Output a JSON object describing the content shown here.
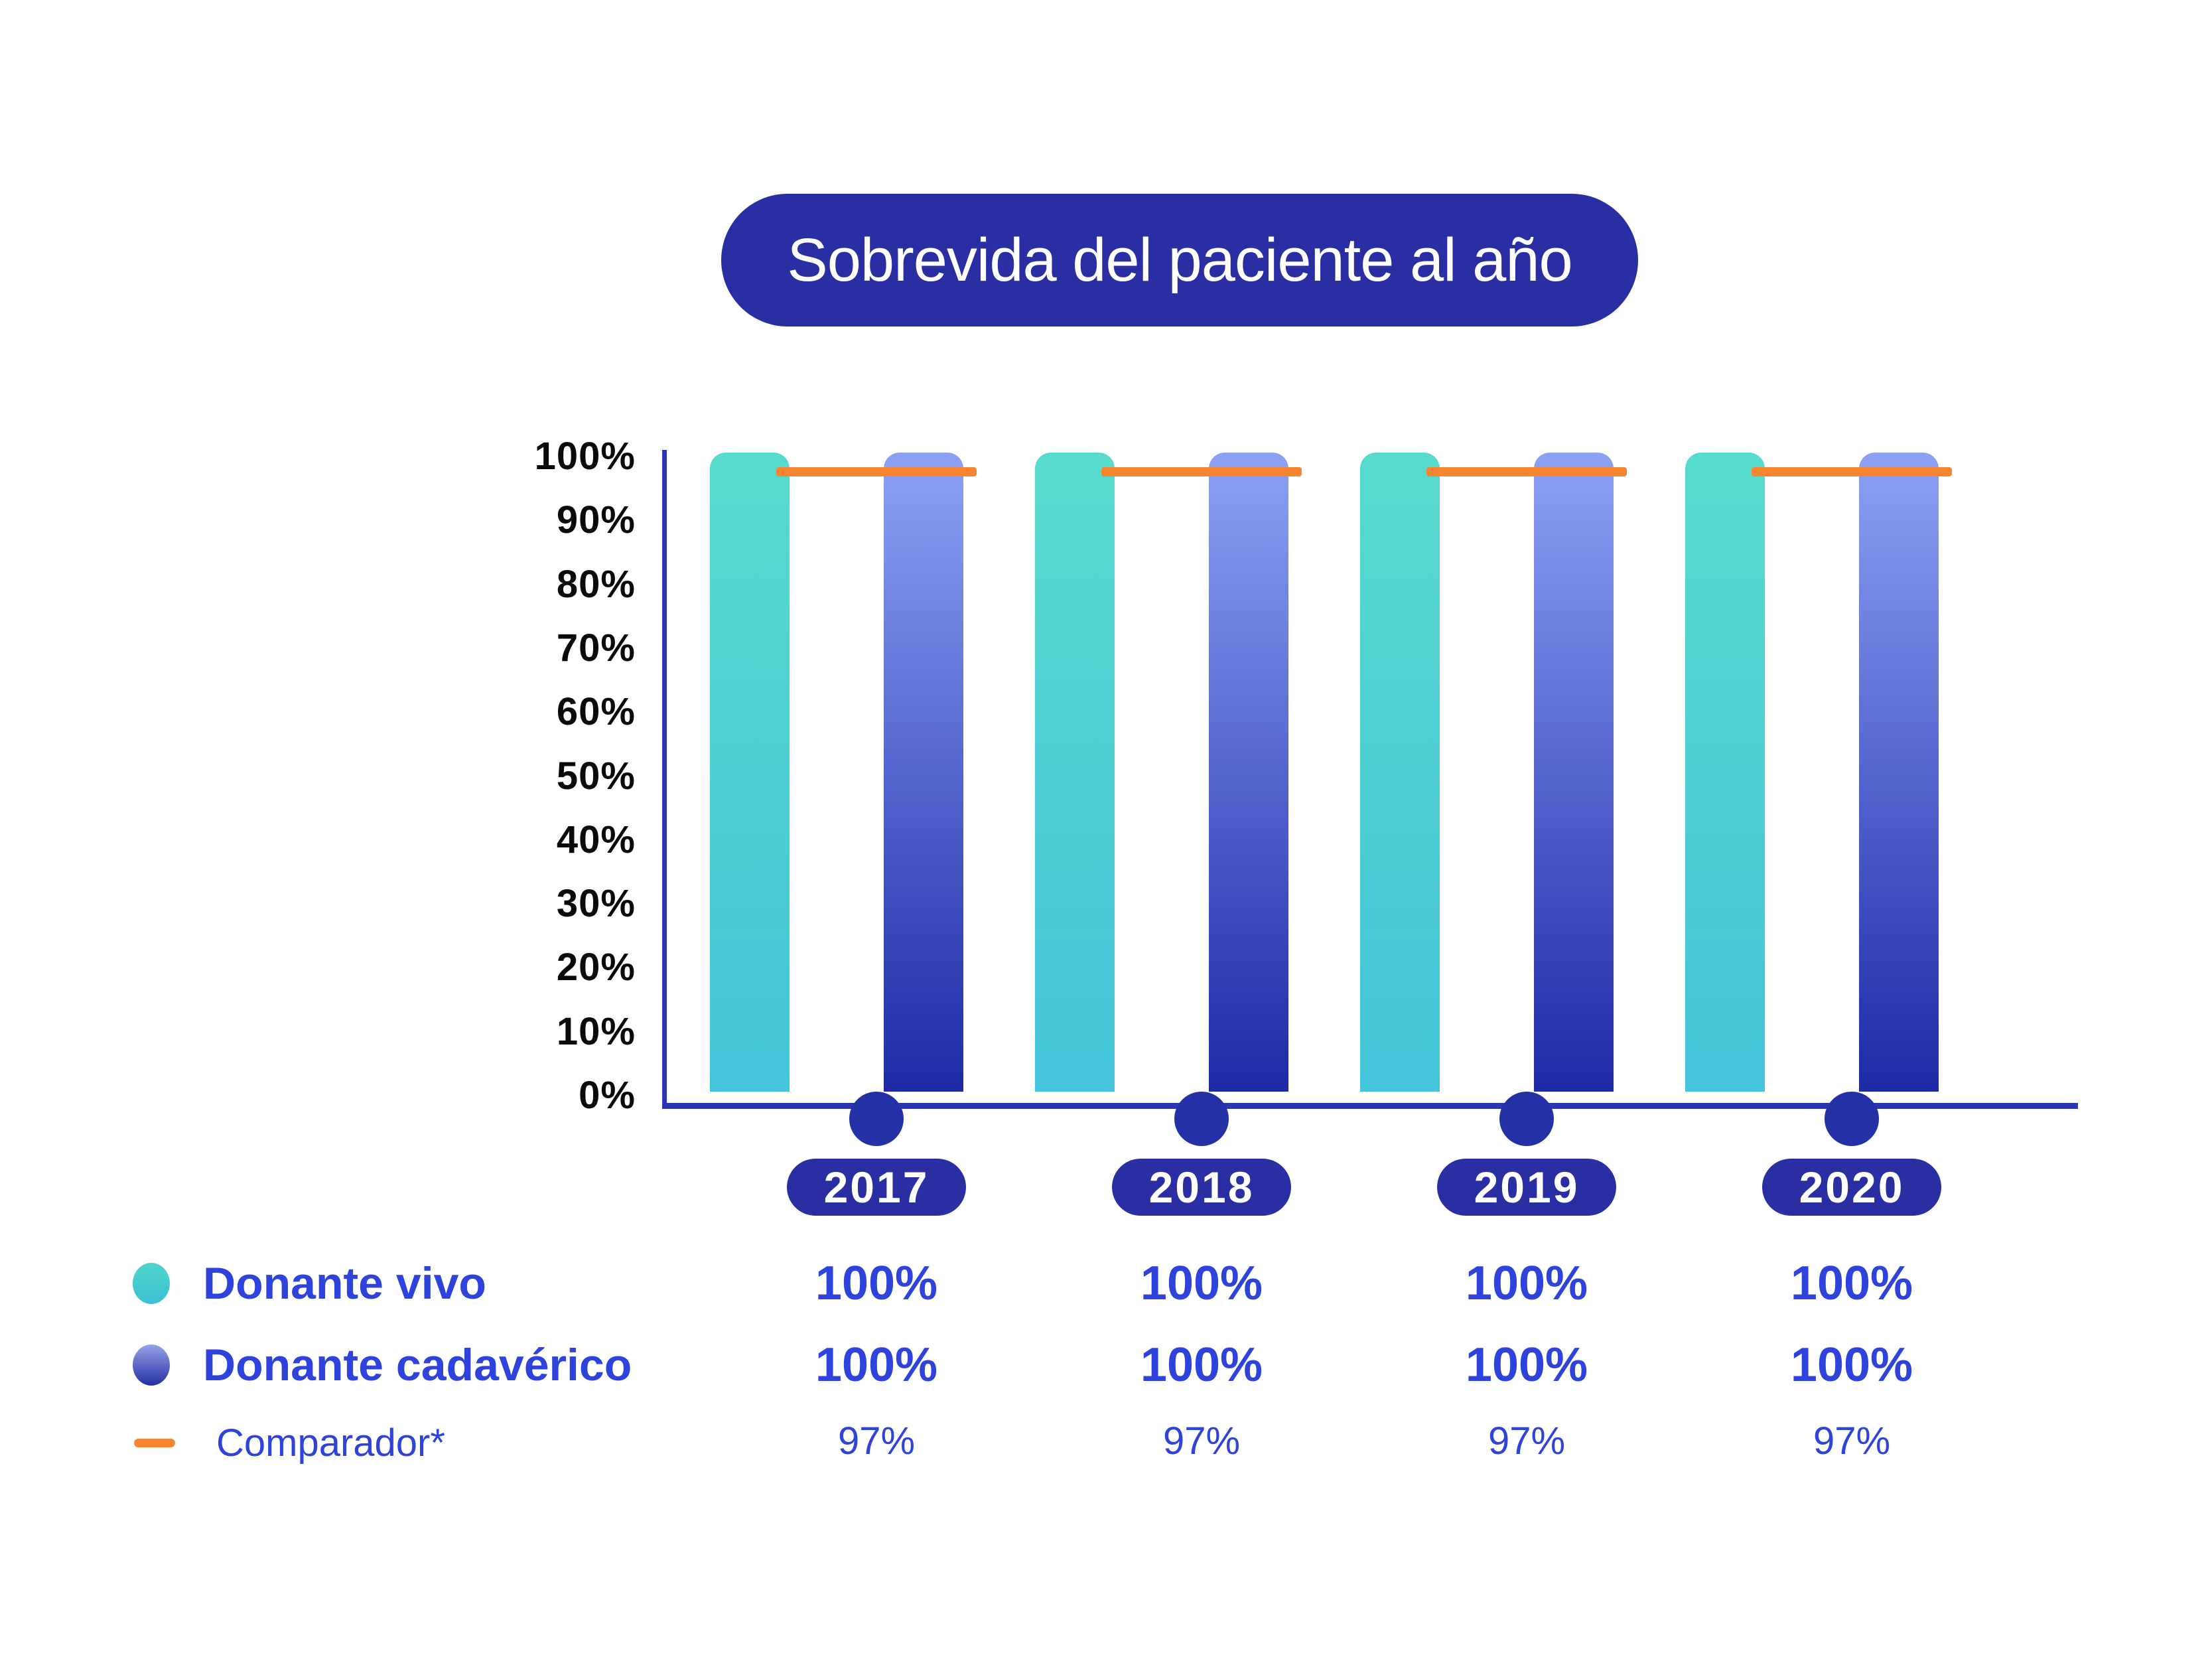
{
  "title": "Sobrevida del paciente al año",
  "colors": {
    "pill_navy": "#2A2EA3",
    "axis_blue": "#2A36B4",
    "dot_navy": "#2430A5",
    "text_blue": "#2E43DC",
    "teal_bar_top": "#57DBCD",
    "teal_bar_bottom": "#43C4DA",
    "blue_bar_top": "#8DA1F6",
    "blue_bar_bottom": "#1E29A6",
    "comparator_orange": "#F7852F",
    "tick_black": "#0A0A0A"
  },
  "chart_data": {
    "type": "bar",
    "title": "Sobrevida del paciente al año",
    "categories": [
      "2017",
      "2018",
      "2019",
      "2020"
    ],
    "series": [
      {
        "name": "Donante vivo",
        "type": "bar",
        "values": [
          100,
          100,
          100,
          100
        ],
        "labels": [
          "100%",
          "100%",
          "100%",
          "100%"
        ]
      },
      {
        "name": "Donante cadavérico",
        "type": "bar",
        "values": [
          100,
          100,
          100,
          100
        ],
        "labels": [
          "100%",
          "100%",
          "100%",
          "100%"
        ]
      },
      {
        "name": "Comparador*",
        "type": "line",
        "values": [
          97,
          97,
          97,
          97
        ],
        "labels": [
          "97%",
          "97%",
          "97%",
          "97%"
        ]
      }
    ],
    "y_ticks": [
      "100%",
      "90%",
      "80%",
      "70%",
      "60%",
      "50%",
      "40%",
      "30%",
      "20%",
      "10%",
      "0%"
    ],
    "ylim": [
      0,
      100
    ],
    "grid": false,
    "legend_position": "bottom-left"
  }
}
